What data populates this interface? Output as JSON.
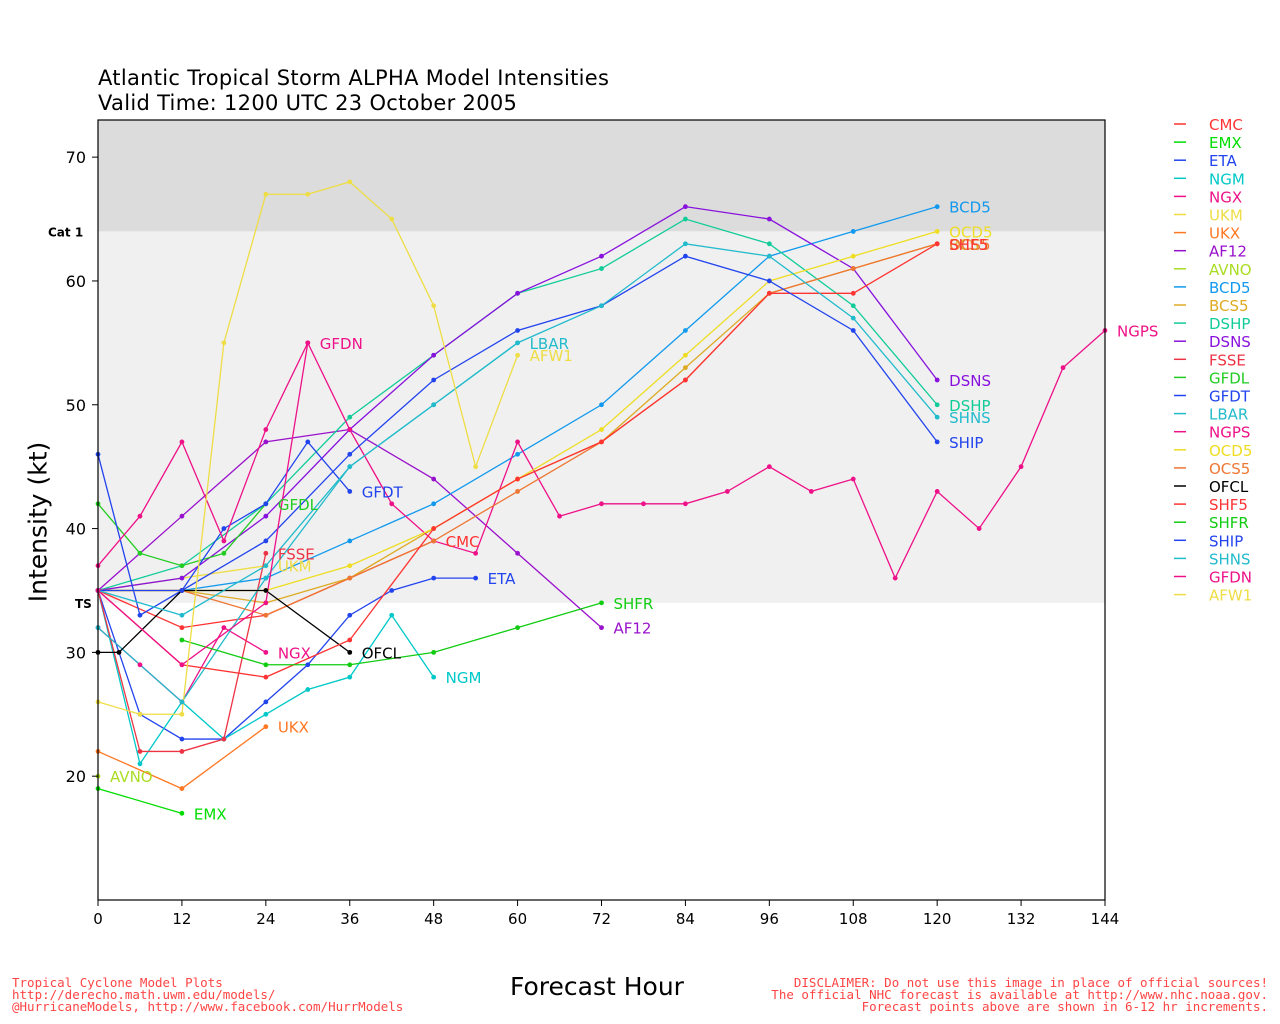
{
  "title_line1": "Atlantic Tropical Storm ALPHA Model Intensities",
  "title_line2": "Valid Time: 1200 UTC 23 October 2005",
  "footer_left": [
    "Tropical Cyclone Model Plots",
    "http://derecho.math.uwm.edu/models/",
    "@HurricaneModels, http://www.facebook.com/HurrModels"
  ],
  "footer_right": [
    "DISCLAIMER: Do not use this image in place of official sources!",
    "The official NHC forecast is available at http://www.nhc.noaa.gov.",
    "Forecast points above are shown in 6-12 hr increments."
  ],
  "colors": {
    "band_cat1": "#dcdcdc",
    "band_ts": "#f0f0f0",
    "footer": "#ff4444"
  },
  "chart_data": {
    "type": "line",
    "xlabel": "Forecast Hour",
    "ylabel": "Intensity (kt)",
    "xlim": [
      0,
      144
    ],
    "ylim": [
      10,
      73
    ],
    "xticks": [
      0,
      12,
      24,
      36,
      48,
      60,
      72,
      84,
      96,
      108,
      120,
      132,
      144
    ],
    "yticks": [
      20,
      30,
      40,
      50,
      60,
      70
    ],
    "bands": [
      {
        "label": "Cat 1",
        "from": 64,
        "to": 73,
        "color": "#dcdcdc"
      },
      {
        "label": "TS",
        "from": 34,
        "to": 64,
        "color": "#f0f0f0"
      }
    ],
    "legend_position": "right",
    "series": [
      {
        "name": "CMC",
        "color": "#ff3333",
        "x": [
          0,
          12,
          24,
          36,
          48
        ],
        "y": [
          35,
          32,
          33,
          36,
          39
        ],
        "label_at_end": true
      },
      {
        "name": "EMX",
        "color": "#00dd00",
        "x": [
          0,
          12
        ],
        "y": [
          19,
          17
        ],
        "label_at_end": true
      },
      {
        "name": "ETA",
        "color": "#2244ee",
        "x": [
          0,
          6,
          12,
          18,
          24,
          30,
          36,
          42,
          48,
          54
        ],
        "y": [
          35,
          25,
          23,
          23,
          26,
          29,
          33,
          35,
          36,
          36
        ],
        "label_at_end": true
      },
      {
        "name": "NGM",
        "color": "#00c8c8",
        "x": [
          0,
          6,
          12,
          18,
          24,
          30,
          36,
          42,
          48
        ],
        "y": [
          35,
          21,
          26,
          23,
          25,
          27,
          28,
          33,
          28
        ],
        "label_at_end": true
      },
      {
        "name": "NGX",
        "color": "#ee1188",
        "x": [
          0,
          6,
          12,
          18,
          24
        ],
        "y": [
          32,
          29,
          26,
          32,
          30
        ],
        "label_at_end": true
      },
      {
        "name": "UKM",
        "color": "#eedd44",
        "x": [
          0,
          12,
          24
        ],
        "y": [
          35,
          36,
          37
        ],
        "label_at_end": true
      },
      {
        "name": "UKX",
        "color": "#ff7722",
        "x": [
          0,
          12,
          24
        ],
        "y": [
          22,
          19,
          24
        ],
        "label_at_end": true
      },
      {
        "name": "AF12",
        "color": "#9911cc",
        "x": [
          0,
          12,
          24,
          36,
          48,
          60,
          72
        ],
        "y": [
          35,
          41,
          47,
          48,
          44,
          38,
          32
        ],
        "label_at_end": true
      },
      {
        "name": "AVNO",
        "color": "#aadd22",
        "x": [
          0
        ],
        "y": [
          20
        ],
        "label_at_end": true
      },
      {
        "name": "BCD5",
        "color": "#1199ee",
        "x": [
          0,
          12,
          24,
          36,
          48,
          60,
          72,
          84,
          96,
          108,
          120
        ],
        "y": [
          35,
          35,
          36,
          39,
          42,
          46,
          50,
          56,
          62,
          64,
          66
        ],
        "label_at_end": true
      },
      {
        "name": "BCS5",
        "color": "#ddaa22",
        "x": [
          0,
          12,
          24,
          36,
          48,
          60,
          72,
          84,
          96,
          108,
          120
        ],
        "y": [
          35,
          35,
          34,
          36,
          40,
          44,
          47,
          53,
          59,
          61,
          63
        ],
        "label_at_end": true
      },
      {
        "name": "DSHP",
        "color": "#11cc99",
        "x": [
          0,
          12,
          24,
          36,
          48,
          60,
          72,
          84,
          96,
          108,
          120
        ],
        "y": [
          35,
          37,
          42,
          49,
          54,
          59,
          61,
          65,
          63,
          58,
          50
        ],
        "label_at_end": true
      },
      {
        "name": "DSNS",
        "color": "#8811dd",
        "x": [
          0,
          12,
          24,
          36,
          48,
          60,
          72,
          84,
          96,
          108,
          120
        ],
        "y": [
          35,
          36,
          41,
          48,
          54,
          59,
          62,
          66,
          65,
          61,
          52
        ],
        "label_at_end": true
      },
      {
        "name": "FSSE",
        "color": "#ee3344",
        "x": [
          0,
          6,
          12,
          18,
          24
        ],
        "y": [
          35,
          22,
          22,
          23,
          38
        ],
        "label_at_end": true
      },
      {
        "name": "GFDL",
        "color": "#22cc22",
        "x": [
          0,
          6,
          12,
          18,
          24
        ],
        "y": [
          42,
          38,
          37,
          38,
          42
        ],
        "label_at_end": true
      },
      {
        "name": "GFDT",
        "color": "#2244ee",
        "x": [
          0,
          6,
          12,
          18,
          24,
          30,
          36
        ],
        "y": [
          46,
          33,
          35,
          40,
          42,
          47,
          43
        ],
        "label_at_end": true
      },
      {
        "name": "LBAR",
        "color": "#22bbcc",
        "x": [
          0,
          12,
          24,
          36,
          48,
          60
        ],
        "y": [
          32,
          26,
          36,
          45,
          50,
          55
        ],
        "label_at_end": true
      },
      {
        "name": "NGPS",
        "color": "#ee1188",
        "x": [
          0,
          6,
          12,
          18,
          24,
          30,
          36,
          42,
          48,
          54,
          60,
          66,
          72,
          78,
          84,
          90,
          96,
          102,
          108,
          114,
          120,
          126,
          132,
          138,
          144
        ],
        "y": [
          37,
          41,
          47,
          39,
          48,
          55,
          48,
          42,
          39,
          38,
          47,
          41,
          42,
          42,
          42,
          43,
          45,
          43,
          44,
          36,
          43,
          40,
          45,
          53,
          56
        ],
        "label_at_end": true
      },
      {
        "name": "OCD5",
        "color": "#eedd22",
        "x": [
          0,
          12,
          24,
          36,
          48,
          60,
          72,
          84,
          96,
          108,
          120
        ],
        "y": [
          35,
          35,
          35,
          37,
          40,
          44,
          48,
          54,
          60,
          62,
          64
        ],
        "label_at_end": true
      },
      {
        "name": "OCS5",
        "color": "#ee7733",
        "x": [
          0,
          12,
          24,
          36,
          48,
          60,
          72,
          84,
          96,
          108,
          120
        ],
        "y": [
          35,
          35,
          33,
          36,
          39,
          43,
          47,
          52,
          59,
          61,
          63
        ],
        "label_at_end": true
      },
      {
        "name": "OFCL",
        "color": "#000000",
        "x": [
          0,
          3,
          12,
          24,
          36
        ],
        "y": [
          30,
          30,
          35,
          35,
          30
        ],
        "label_at_end": true
      },
      {
        "name": "SHF5",
        "color": "#ff3333",
        "x": [
          0,
          12,
          24,
          36,
          48,
          60,
          72,
          84,
          96,
          108,
          120
        ],
        "y": [
          35,
          29,
          28,
          31,
          40,
          44,
          47,
          52,
          59,
          59,
          63
        ],
        "label_at_end": true
      },
      {
        "name": "SHFR",
        "color": "#11cc11",
        "x": [
          12,
          24,
          36,
          48,
          60,
          72
        ],
        "y": [
          31,
          29,
          29,
          30,
          32,
          34
        ],
        "label_at_end": true
      },
      {
        "name": "SHIP",
        "color": "#2244ee",
        "x": [
          0,
          12,
          24,
          36,
          48,
          60,
          72,
          84,
          96,
          108,
          120
        ],
        "y": [
          35,
          35,
          39,
          46,
          52,
          56,
          58,
          62,
          60,
          56,
          47
        ],
        "label_at_end": true
      },
      {
        "name": "SHNS",
        "color": "#22bbcc",
        "x": [
          0,
          12,
          24,
          36,
          48,
          60,
          72,
          84,
          96,
          108,
          120
        ],
        "y": [
          35,
          33,
          37,
          45,
          50,
          55,
          58,
          63,
          62,
          57,
          49
        ],
        "label_at_end": true
      },
      {
        "name": "GFDN",
        "color": "#ee1188",
        "x": [
          0,
          12,
          24,
          30
        ],
        "y": [
          35,
          29,
          34,
          55
        ],
        "label_at_end": true
      },
      {
        "name": "AFW1",
        "color": "#eedd44",
        "x": [
          0,
          6,
          12,
          18,
          24,
          30,
          36,
          42,
          48,
          54,
          60
        ],
        "y": [
          26,
          25,
          25,
          55,
          67,
          67,
          68,
          65,
          58,
          45,
          54
        ],
        "label_at_end": true
      }
    ]
  }
}
